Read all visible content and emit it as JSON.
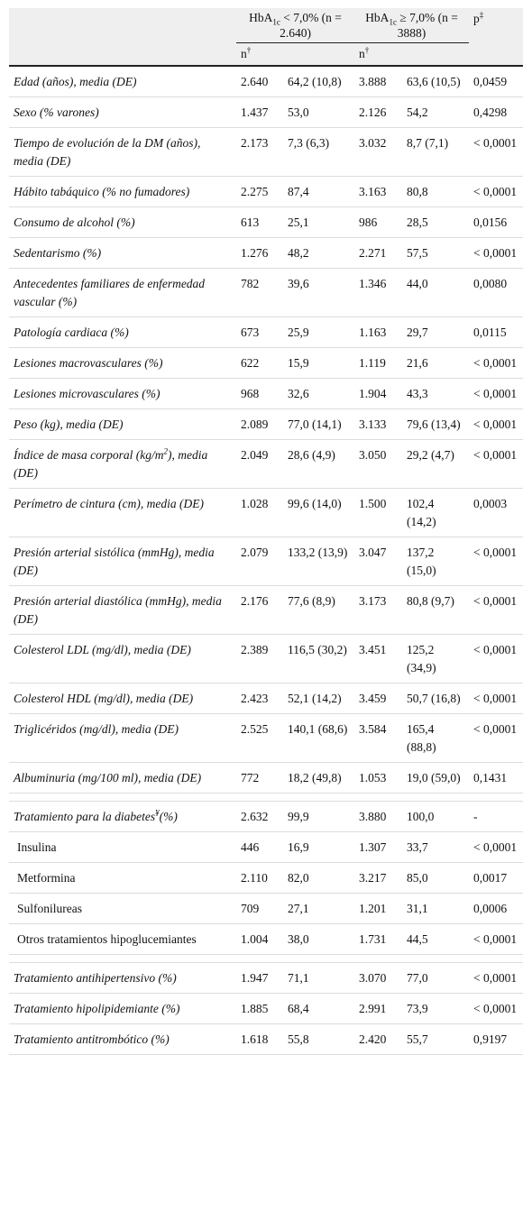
{
  "header": {
    "group1": {
      "prefix": "HbA",
      "sub": "1c",
      "suffix": " < 7,0% (n = 2.640)"
    },
    "group2": {
      "prefix": "HbA",
      "sub": "1c",
      "suffix": " ≥ 7,0% (n = 3888)"
    },
    "p": {
      "text": "p",
      "sup": "‡"
    },
    "n1": {
      "text": "n",
      "sup": "†"
    },
    "n2": {
      "text": "n",
      "sup": "†"
    }
  },
  "sections": [
    {
      "rows": [
        {
          "label": "Edad (años), media (DE)",
          "cells": [
            "2.640",
            "64,2 (10,8)",
            "3.888",
            "63,6 (10,5)",
            "0,0459"
          ]
        },
        {
          "label": "Sexo (% varones)",
          "cells": [
            "1.437",
            "53,0",
            "2.126",
            "54,2",
            "0,4298"
          ]
        },
        {
          "label": "Tiempo de evolución de la DM (años), media (DE)",
          "cells": [
            "2.173",
            "7,3 (6,3)",
            "3.032",
            "8,7 (7,1)",
            "< 0,0001"
          ]
        },
        {
          "label": "Hábito tabáquico (% no fumadores)",
          "cells": [
            "2.275",
            "87,4",
            "3.163",
            "80,8",
            "< 0,0001"
          ]
        },
        {
          "label": "Consumo de alcohol (%)",
          "cells": [
            "613",
            "25,1",
            "986",
            "28,5",
            "0,0156"
          ]
        },
        {
          "label": "Sedentarismo (%)",
          "cells": [
            "1.276",
            "48,2",
            "2.271",
            "57,5",
            "< 0,0001"
          ]
        },
        {
          "label": "Antecedentes familiares de enfermedad vascular (%)",
          "cells": [
            "782",
            "39,6",
            "1.346",
            "44,0",
            "0,0080"
          ]
        },
        {
          "label": "Patología cardiaca (%)",
          "cells": [
            "673",
            "25,9",
            "1.163",
            "29,7",
            "0,0115"
          ]
        },
        {
          "label": "Lesiones macrovasculares (%)",
          "cells": [
            "622",
            "15,9",
            "1.119",
            "21,6",
            "< 0,0001"
          ]
        },
        {
          "label": "Lesiones microvasculares (%)",
          "cells": [
            "968",
            "32,6",
            "1.904",
            "43,3",
            "< 0,0001"
          ]
        },
        {
          "label": "Peso (kg), media (DE)",
          "cells": [
            "2.089",
            "77,0 (14,1)",
            "3.133",
            "79,6 (13,4)",
            "< 0,0001"
          ]
        },
        {
          "label": [
            {
              "text": "Índice de masa corporal (kg/m"
            },
            {
              "sup": "2"
            },
            {
              "text": "), media (DE)"
            }
          ],
          "cells": [
            "2.049",
            "28,6 (4,9)",
            "3.050",
            "29,2 (4,7)",
            "< 0,0001"
          ]
        },
        {
          "label": "Perímetro de cintura (cm), media (DE)",
          "cells": [
            "1.028",
            "99,6 (14,0)",
            "1.500",
            "102,4 (14,2)",
            "0,0003"
          ]
        },
        {
          "label": "Presión arterial sistólica (mmHg), media (DE)",
          "cells": [
            "2.079",
            "133,2 (13,9)",
            "3.047",
            "137,2 (15,0)",
            "< 0,0001"
          ]
        },
        {
          "label": "Presión arterial diastólica (mmHg), media (DE)",
          "cells": [
            "2.176",
            "77,6 (8,9)",
            "3.173",
            "80,8 (9,7)",
            "< 0,0001"
          ]
        },
        {
          "label": "Colesterol LDL (mg/dl), media (DE)",
          "cells": [
            "2.389",
            "116,5 (30,2)",
            "3.451",
            "125,2 (34,9)",
            "< 0,0001"
          ]
        },
        {
          "label": "Colesterol HDL (mg/dl), media (DE)",
          "cells": [
            "2.423",
            "52,1 (14,2)",
            "3.459",
            "50,7 (16,8)",
            "< 0,0001"
          ]
        },
        {
          "label": "Triglicéridos (mg/dl), media (DE)",
          "cells": [
            "2.525",
            "140,1 (68,6)",
            "3.584",
            "165,4 (88,8)",
            "< 0,0001"
          ]
        },
        {
          "label": "Albuminuria (mg/100 ml), media (DE)",
          "cells": [
            "772",
            "18,2 (49,8)",
            "1.053",
            "19,0 (59,0)",
            "0,1431"
          ]
        }
      ]
    },
    {
      "rows": [
        {
          "label": [
            {
              "text": "Tratamiento para la diabetes"
            },
            {
              "sup": "¥"
            },
            {
              "text": "(%)"
            }
          ],
          "cells": [
            "2.632",
            "99,9",
            "3.880",
            "100,0",
            "-"
          ]
        },
        {
          "label": "Insulina",
          "plain": true,
          "cells": [
            "446",
            "16,9",
            "1.307",
            "33,7",
            "< 0,0001"
          ]
        },
        {
          "label": "Metformina",
          "plain": true,
          "cells": [
            "2.110",
            "82,0",
            "3.217",
            "85,0",
            "0,0017"
          ]
        },
        {
          "label": "Sulfonilureas",
          "plain": true,
          "cells": [
            "709",
            "27,1",
            "1.201",
            "31,1",
            "0,0006"
          ]
        },
        {
          "label": "Otros tratamientos hipoglucemiantes",
          "plain": true,
          "cells": [
            "1.004",
            "38,0",
            "1.731",
            "44,5",
            "< 0,0001"
          ]
        }
      ]
    },
    {
      "rows": [
        {
          "label": "Tratamiento antihipertensivo (%)",
          "cells": [
            "1.947",
            "71,1",
            "3.070",
            "77,0",
            "< 0,0001"
          ]
        },
        {
          "label": "Tratamiento hipolipidemiante (%)",
          "cells": [
            "1.885",
            "68,4",
            "2.991",
            "73,9",
            "< 0,0001"
          ]
        },
        {
          "label": "Tratamiento antitrombótico (%)",
          "cells": [
            "1.618",
            "55,8",
            "2.420",
            "55,7",
            "0,9197"
          ]
        }
      ]
    }
  ]
}
